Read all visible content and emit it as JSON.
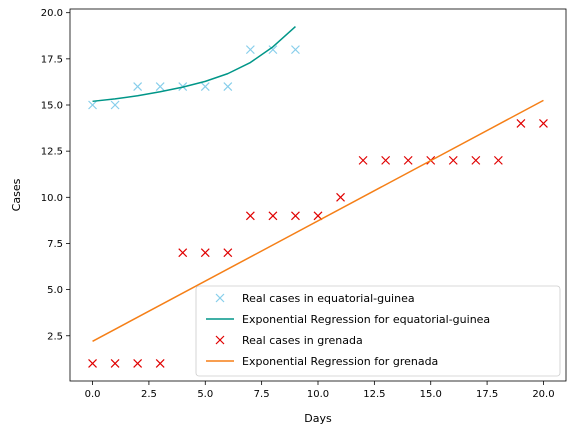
{
  "chart_data": {
    "type": "scatter",
    "xlabel": "Days",
    "ylabel": "Cases",
    "xlim": [
      -1,
      21
    ],
    "ylim": [
      0.05,
      20.2
    ],
    "xticks": [
      0.0,
      2.5,
      5.0,
      7.5,
      10.0,
      12.5,
      15.0,
      17.5,
      20.0
    ],
    "yticks": [
      2.5,
      5.0,
      7.5,
      10.0,
      12.5,
      15.0,
      17.5,
      20.0
    ],
    "xtick_labels": [
      "0.0",
      "2.5",
      "5.0",
      "7.5",
      "10.0",
      "12.5",
      "15.0",
      "17.5",
      "20.0"
    ],
    "ytick_labels": [
      "2.5",
      "5.0",
      "7.5",
      "10.0",
      "12.5",
      "15.0",
      "17.5",
      "20.0"
    ],
    "grid": false,
    "legend_position": "lower-right",
    "series": [
      {
        "name": "Real cases in equatorial-guinea",
        "kind": "marker",
        "marker": "x",
        "color": "#87ceeb",
        "x": [
          0,
          1,
          2,
          3,
          4,
          5,
          6,
          7,
          8,
          9
        ],
        "y": [
          15,
          15,
          16,
          16,
          16,
          16,
          16,
          18,
          18,
          18
        ]
      },
      {
        "name": "Exponential Regression for equatorial-guinea",
        "kind": "line",
        "color": "#009688",
        "x": [
          0,
          1,
          2,
          3,
          4,
          5,
          6,
          7,
          8,
          9
        ],
        "y": [
          15.2,
          15.33,
          15.5,
          15.72,
          15.97,
          16.28,
          16.7,
          17.3,
          18.15,
          19.25
        ]
      },
      {
        "name": "Real cases in grenada",
        "kind": "marker",
        "marker": "x",
        "color": "#e00000",
        "x": [
          0,
          1,
          2,
          3,
          4,
          5,
          6,
          7,
          8,
          9,
          10,
          11,
          12,
          13,
          14,
          15,
          16,
          17,
          18,
          19,
          20
        ],
        "y": [
          1,
          1,
          1,
          1,
          7,
          7,
          7,
          9,
          9,
          9,
          9,
          10,
          12,
          12,
          12,
          12,
          12,
          12,
          12,
          14,
          14
        ]
      },
      {
        "name": "Exponential Regression for grenada",
        "kind": "line",
        "color": "#f57f17",
        "x": [
          0,
          20
        ],
        "y": [
          2.2,
          15.25
        ]
      }
    ]
  }
}
